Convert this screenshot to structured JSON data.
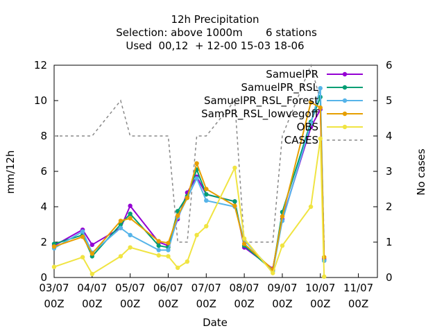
{
  "chart_data": {
    "type": "line",
    "title_lines": [
      "12h Precipitation",
      "Selection: above 1000m       6 stations",
      "Used  00,12  + 12-00 15-03 18-06"
    ],
    "xlabel": "Date",
    "ylabel": "mm/12h",
    "y2label": "No cases",
    "xlim": [
      0,
      8.5
    ],
    "ylim": [
      0,
      12
    ],
    "y2lim": [
      0,
      6
    ],
    "yticks": [
      0,
      2,
      4,
      6,
      8,
      10,
      12
    ],
    "y2ticks": [
      0,
      1,
      2,
      3,
      4,
      5,
      6
    ],
    "xticks": [
      {
        "x": 0,
        "l1": "03/07",
        "l2": "00Z"
      },
      {
        "x": 1,
        "l1": "04/07",
        "l2": "00Z"
      },
      {
        "x": 2,
        "l1": "05/07",
        "l2": "00Z"
      },
      {
        "x": 3,
        "l1": "06/07",
        "l2": "00Z"
      },
      {
        "x": 4,
        "l1": "07/07",
        "l2": "00Z"
      },
      {
        "x": 5,
        "l1": "08/07",
        "l2": "00Z"
      },
      {
        "x": 6,
        "l1": "09/07",
        "l2": "00Z"
      },
      {
        "x": 7,
        "l1": "10/07",
        "l2": "00Z"
      },
      {
        "x": 8,
        "l1": "11/07",
        "l2": "00Z"
      }
    ],
    "grid": false,
    "legend_position": "top-right",
    "series": [
      {
        "name": "SamuelPR",
        "color": "#9400d3",
        "marker": "circle",
        "x": [
          0,
          0.75,
          1,
          1.75,
          2,
          2.75,
          3,
          3.25,
          3.5,
          3.75,
          4,
          4.75,
          5,
          5.75,
          6,
          6.75,
          7,
          7.1
        ],
        "y": [
          1.8,
          2.7,
          1.85,
          2.8,
          4.05,
          2.0,
          1.8,
          3.3,
          4.8,
          5.7,
          4.7,
          4.3,
          1.7,
          0.5,
          3.3,
          8.5,
          9.5,
          1.05
        ]
      },
      {
        "name": "SamuelPR_RSL",
        "color": "#009e73",
        "marker": "circle",
        "x": [
          0,
          0.75,
          1,
          1.75,
          2,
          2.75,
          3,
          3.25,
          3.5,
          3.75,
          4,
          4.75,
          5,
          5.75,
          6,
          6.75,
          7,
          7.1
        ],
        "y": [
          1.9,
          2.4,
          1.2,
          3.0,
          3.6,
          1.8,
          1.7,
          3.75,
          4.6,
          6.1,
          4.7,
          4.3,
          1.8,
          0.4,
          3.7,
          8.8,
          10.2,
          0.95
        ]
      },
      {
        "name": "SamuelPR_RSL_Forest",
        "color": "#56b4e9",
        "marker": "circle",
        "x": [
          0,
          0.75,
          1,
          1.75,
          2,
          2.75,
          3,
          3.25,
          3.5,
          3.75,
          4,
          4.75,
          5,
          5.75,
          6,
          6.75,
          7,
          7.1
        ],
        "y": [
          1.65,
          2.6,
          1.4,
          2.8,
          2.4,
          1.55,
          1.55,
          3.4,
          4.5,
          5.6,
          4.35,
          4.0,
          2.1,
          0.35,
          3.2,
          8.7,
          10.7,
          0.95
        ]
      },
      {
        "name": "SamPR_RSL_lowvegoff",
        "color": "#e69f00",
        "marker": "circle",
        "x": [
          0,
          0.75,
          1,
          1.75,
          2,
          2.75,
          3,
          3.25,
          3.5,
          3.75,
          4,
          4.75,
          5,
          5.75,
          6,
          6.75,
          7,
          7.1
        ],
        "y": [
          1.75,
          2.3,
          1.35,
          3.2,
          3.35,
          2.05,
          1.95,
          3.5,
          4.5,
          6.45,
          5.0,
          4.05,
          1.9,
          0.45,
          3.45,
          9.9,
          9.6,
          1.15
        ]
      },
      {
        "name": "OBS",
        "color": "#f0e442",
        "marker": "circle",
        "x": [
          0,
          0.75,
          1,
          1.75,
          2,
          2.75,
          3,
          3.25,
          3.5,
          3.75,
          4,
          4.75,
          5,
          5.75,
          6,
          6.75,
          7,
          7.1
        ],
        "y": [
          0.6,
          1.15,
          0.2,
          1.2,
          1.7,
          1.25,
          1.2,
          0.55,
          0.9,
          2.4,
          2.9,
          6.2,
          2.2,
          0.25,
          1.8,
          4.0,
          7.85,
          0.05
        ]
      },
      {
        "name": "CASES",
        "color": "#888888",
        "dashed": true,
        "axis": "y2",
        "x": [
          0,
          1,
          1.75,
          2,
          3,
          3.25,
          3.5,
          3.75,
          4,
          4.75,
          5,
          5.75,
          6,
          6.75,
          7,
          7.1
        ],
        "y": [
          4,
          4,
          5,
          4,
          4,
          1,
          1,
          4,
          4,
          5,
          1,
          1,
          4,
          6,
          5,
          1
        ]
      }
    ]
  }
}
